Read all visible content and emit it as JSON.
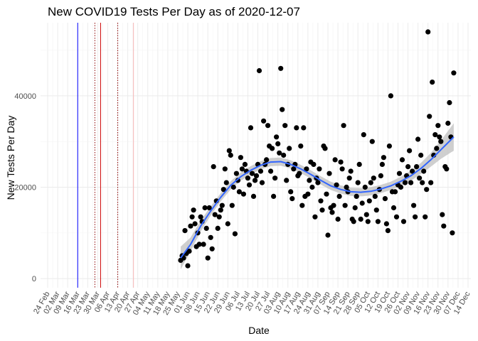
{
  "chart_data": {
    "type": "scatter",
    "title": "New COVID19 Tests Per Day as of 2020-12-07",
    "xlabel": "Date",
    "ylabel": "New Tests Per Day",
    "x_range": [
      "2020-02-19",
      "2020-12-16"
    ],
    "ylim": [
      -2000,
      56000
    ],
    "x_ticks": [
      {
        "date": "2020-02-24",
        "label": "24 Feb"
      },
      {
        "date": "2020-03-02",
        "label": "02 Mar"
      },
      {
        "date": "2020-03-09",
        "label": "09 Mar"
      },
      {
        "date": "2020-03-16",
        "label": "16 Mar"
      },
      {
        "date": "2020-03-23",
        "label": "23 Mar"
      },
      {
        "date": "2020-03-30",
        "label": "30 Mar"
      },
      {
        "date": "2020-04-06",
        "label": "06 Apr"
      },
      {
        "date": "2020-04-13",
        "label": "13 Apr"
      },
      {
        "date": "2020-04-20",
        "label": "20 Apr"
      },
      {
        "date": "2020-04-27",
        "label": "27 Apr"
      },
      {
        "date": "2020-05-04",
        "label": "04 May"
      },
      {
        "date": "2020-05-11",
        "label": "11 May"
      },
      {
        "date": "2020-05-18",
        "label": "18 May"
      },
      {
        "date": "2020-05-25",
        "label": "25 May"
      },
      {
        "date": "2020-06-01",
        "label": "01 Jun"
      },
      {
        "date": "2020-06-08",
        "label": "08 Jun"
      },
      {
        "date": "2020-06-15",
        "label": "15 Jun"
      },
      {
        "date": "2020-06-22",
        "label": "22 Jun"
      },
      {
        "date": "2020-06-29",
        "label": "29 Jun"
      },
      {
        "date": "2020-07-06",
        "label": "06 Jul"
      },
      {
        "date": "2020-07-13",
        "label": "13 Jul"
      },
      {
        "date": "2020-07-20",
        "label": "20 Jul"
      },
      {
        "date": "2020-07-27",
        "label": "27 Jul"
      },
      {
        "date": "2020-08-03",
        "label": "03 Aug"
      },
      {
        "date": "2020-08-10",
        "label": "10 Aug"
      },
      {
        "date": "2020-08-17",
        "label": "17 Aug"
      },
      {
        "date": "2020-08-24",
        "label": "24 Aug"
      },
      {
        "date": "2020-08-31",
        "label": "31 Aug"
      },
      {
        "date": "2020-09-07",
        "label": "07 Sep"
      },
      {
        "date": "2020-09-14",
        "label": "14 Sep"
      },
      {
        "date": "2020-09-21",
        "label": "21 Sep"
      },
      {
        "date": "2020-09-28",
        "label": "28 Sep"
      },
      {
        "date": "2020-10-05",
        "label": "05 Oct"
      },
      {
        "date": "2020-10-12",
        "label": "12 Oct"
      },
      {
        "date": "2020-10-19",
        "label": "19 Oct"
      },
      {
        "date": "2020-10-26",
        "label": "26 Oct"
      },
      {
        "date": "2020-11-02",
        "label": "02 Nov"
      },
      {
        "date": "2020-11-09",
        "label": "09 Nov"
      },
      {
        "date": "2020-11-16",
        "label": "16 Nov"
      },
      {
        "date": "2020-11-23",
        "label": "23 Nov"
      },
      {
        "date": "2020-11-30",
        "label": "30 Nov"
      },
      {
        "date": "2020-12-07",
        "label": "07 Dec"
      },
      {
        "date": "2020-12-14",
        "label": "14 Dec"
      }
    ],
    "y_ticks": [
      0,
      20000,
      40000
    ],
    "grid": true,
    "legend": "none",
    "reference_lines": [
      {
        "date": "2020-03-16",
        "color": "#0000ff",
        "style": "solid"
      },
      {
        "date": "2020-03-28",
        "color": "#8b0000",
        "style": "dotted"
      },
      {
        "date": "2020-04-01",
        "color": "#cc0000",
        "style": "solid"
      },
      {
        "date": "2020-04-13",
        "color": "#8b0000",
        "style": "dotted"
      },
      {
        "date": "2020-04-24",
        "color": "#f4b6b6",
        "style": "solid"
      }
    ],
    "point_color": "#000000",
    "smooth_color": "#3366ff",
    "band_color": "#bfbfbf",
    "points": [
      {
        "x": "2020-05-27",
        "y": 4000
      },
      {
        "x": "2020-05-28",
        "y": 5000
      },
      {
        "x": "2020-05-29",
        "y": 4500
      },
      {
        "x": "2020-05-30",
        "y": 10500
      },
      {
        "x": "2020-05-31",
        "y": 5500
      },
      {
        "x": "2020-06-01",
        "y": 2800
      },
      {
        "x": "2020-06-02",
        "y": 6000
      },
      {
        "x": "2020-06-03",
        "y": 11500
      },
      {
        "x": "2020-06-04",
        "y": 13500
      },
      {
        "x": "2020-06-05",
        "y": 15000
      },
      {
        "x": "2020-06-06",
        "y": 12000
      },
      {
        "x": "2020-06-07",
        "y": 7000
      },
      {
        "x": "2020-06-08",
        "y": 10000
      },
      {
        "x": "2020-06-09",
        "y": 7500
      },
      {
        "x": "2020-06-10",
        "y": 13500
      },
      {
        "x": "2020-06-11",
        "y": 12500
      },
      {
        "x": "2020-06-12",
        "y": 7500
      },
      {
        "x": "2020-06-13",
        "y": 15500
      },
      {
        "x": "2020-06-14",
        "y": 11000
      },
      {
        "x": "2020-06-15",
        "y": 4500
      },
      {
        "x": "2020-06-16",
        "y": 15500
      },
      {
        "x": "2020-06-17",
        "y": 9000
      },
      {
        "x": "2020-06-18",
        "y": 6500
      },
      {
        "x": "2020-06-19",
        "y": 24500
      },
      {
        "x": "2020-06-20",
        "y": 14000
      },
      {
        "x": "2020-06-21",
        "y": 17000
      },
      {
        "x": "2020-06-22",
        "y": 11000
      },
      {
        "x": "2020-06-23",
        "y": 13500
      },
      {
        "x": "2020-06-24",
        "y": 15000
      },
      {
        "x": "2020-06-25",
        "y": 16000
      },
      {
        "x": "2020-06-26",
        "y": 19500
      },
      {
        "x": "2020-06-27",
        "y": 24000
      },
      {
        "x": "2020-06-28",
        "y": 21000
      },
      {
        "x": "2020-06-29",
        "y": 12000
      },
      {
        "x": "2020-06-30",
        "y": 28000
      },
      {
        "x": "2020-07-01",
        "y": 27000
      },
      {
        "x": "2020-07-02",
        "y": 16000
      },
      {
        "x": "2020-07-03",
        "y": 20000
      },
      {
        "x": "2020-07-04",
        "y": 9800
      },
      {
        "x": "2020-07-05",
        "y": 23000
      },
      {
        "x": "2020-07-06",
        "y": 21500
      },
      {
        "x": "2020-07-07",
        "y": 19000
      },
      {
        "x": "2020-07-08",
        "y": 26500
      },
      {
        "x": "2020-07-09",
        "y": 24000
      },
      {
        "x": "2020-07-10",
        "y": 18500
      },
      {
        "x": "2020-07-11",
        "y": 25000
      },
      {
        "x": "2020-07-12",
        "y": 23500
      },
      {
        "x": "2020-07-13",
        "y": 22000
      },
      {
        "x": "2020-07-14",
        "y": 20500
      },
      {
        "x": "2020-07-15",
        "y": 33000
      },
      {
        "x": "2020-07-16",
        "y": 23000
      },
      {
        "x": "2020-07-17",
        "y": 18000
      },
      {
        "x": "2020-07-18",
        "y": 21500
      },
      {
        "x": "2020-07-19",
        "y": 22500
      },
      {
        "x": "2020-07-20",
        "y": 25000
      },
      {
        "x": "2020-07-21",
        "y": 45500
      },
      {
        "x": "2020-07-22",
        "y": 23500
      },
      {
        "x": "2020-07-23",
        "y": 21000
      },
      {
        "x": "2020-07-24",
        "y": 34500
      },
      {
        "x": "2020-07-25",
        "y": 25000
      },
      {
        "x": "2020-07-26",
        "y": 26000
      },
      {
        "x": "2020-07-27",
        "y": 33500
      },
      {
        "x": "2020-07-28",
        "y": 29000
      },
      {
        "x": "2020-07-29",
        "y": 23500
      },
      {
        "x": "2020-07-30",
        "y": 28500
      },
      {
        "x": "2020-07-31",
        "y": 18000
      },
      {
        "x": "2020-08-01",
        "y": 22000
      },
      {
        "x": "2020-08-02",
        "y": 31000
      },
      {
        "x": "2020-08-03",
        "y": 29500
      },
      {
        "x": "2020-08-04",
        "y": 27500
      },
      {
        "x": "2020-08-05",
        "y": 46000
      },
      {
        "x": "2020-08-06",
        "y": 37000
      },
      {
        "x": "2020-08-07",
        "y": 27000
      },
      {
        "x": "2020-08-08",
        "y": 33500
      },
      {
        "x": "2020-08-09",
        "y": 21500
      },
      {
        "x": "2020-08-10",
        "y": 25000
      },
      {
        "x": "2020-08-11",
        "y": 28500
      },
      {
        "x": "2020-08-12",
        "y": 19000
      },
      {
        "x": "2020-08-13",
        "y": 17500
      },
      {
        "x": "2020-08-14",
        "y": 24000
      },
      {
        "x": "2020-08-15",
        "y": 25000
      },
      {
        "x": "2020-08-16",
        "y": 33000
      },
      {
        "x": "2020-08-17",
        "y": 22500
      },
      {
        "x": "2020-08-18",
        "y": 23000
      },
      {
        "x": "2020-08-19",
        "y": 29000
      },
      {
        "x": "2020-08-20",
        "y": 16000
      },
      {
        "x": "2020-08-21",
        "y": 33000
      },
      {
        "x": "2020-08-22",
        "y": 18000
      },
      {
        "x": "2020-08-23",
        "y": 24000
      },
      {
        "x": "2020-08-24",
        "y": 18500
      },
      {
        "x": "2020-08-25",
        "y": 21500
      },
      {
        "x": "2020-08-26",
        "y": 25500
      },
      {
        "x": "2020-08-27",
        "y": 20000
      },
      {
        "x": "2020-08-28",
        "y": 25000
      },
      {
        "x": "2020-08-29",
        "y": 13500
      },
      {
        "x": "2020-08-30",
        "y": 22000
      },
      {
        "x": "2020-08-31",
        "y": 21000
      },
      {
        "x": "2020-09-01",
        "y": 24000
      },
      {
        "x": "2020-09-02",
        "y": 17000
      },
      {
        "x": "2020-09-03",
        "y": 15000
      },
      {
        "x": "2020-09-04",
        "y": 29000
      },
      {
        "x": "2020-09-05",
        "y": 28500
      },
      {
        "x": "2020-09-06",
        "y": 18500
      },
      {
        "x": "2020-09-07",
        "y": 9500
      },
      {
        "x": "2020-09-08",
        "y": 23000
      },
      {
        "x": "2020-09-09",
        "y": 15500
      },
      {
        "x": "2020-09-10",
        "y": 14500
      },
      {
        "x": "2020-09-11",
        "y": 16000
      },
      {
        "x": "2020-09-12",
        "y": 26000
      },
      {
        "x": "2020-09-13",
        "y": 20500
      },
      {
        "x": "2020-09-14",
        "y": 13000
      },
      {
        "x": "2020-09-15",
        "y": 18000
      },
      {
        "x": "2020-09-16",
        "y": 25500
      },
      {
        "x": "2020-09-17",
        "y": 24000
      },
      {
        "x": "2020-09-18",
        "y": 33500
      },
      {
        "x": "2020-09-19",
        "y": 16000
      },
      {
        "x": "2020-09-20",
        "y": 20000
      },
      {
        "x": "2020-09-21",
        "y": 19000
      },
      {
        "x": "2020-09-22",
        "y": 22000
      },
      {
        "x": "2020-09-23",
        "y": 23500
      },
      {
        "x": "2020-09-24",
        "y": 13000
      },
      {
        "x": "2020-09-25",
        "y": 12500
      },
      {
        "x": "2020-09-26",
        "y": 15500
      },
      {
        "x": "2020-09-27",
        "y": 18000
      },
      {
        "x": "2020-09-28",
        "y": 21000
      },
      {
        "x": "2020-09-29",
        "y": 25000
      },
      {
        "x": "2020-09-30",
        "y": 13000
      },
      {
        "x": "2020-10-01",
        "y": 16500
      },
      {
        "x": "2020-10-02",
        "y": 31500
      },
      {
        "x": "2020-10-03",
        "y": 20000
      },
      {
        "x": "2020-10-04",
        "y": 14000
      },
      {
        "x": "2020-10-05",
        "y": 12500
      },
      {
        "x": "2020-10-06",
        "y": 17000
      },
      {
        "x": "2020-10-07",
        "y": 21000
      },
      {
        "x": "2020-10-08",
        "y": 30000
      },
      {
        "x": "2020-10-09",
        "y": 22000
      },
      {
        "x": "2020-10-10",
        "y": 18000
      },
      {
        "x": "2020-10-11",
        "y": 15000
      },
      {
        "x": "2020-10-12",
        "y": 12500
      },
      {
        "x": "2020-10-13",
        "y": 19500
      },
      {
        "x": "2020-10-14",
        "y": 22500
      },
      {
        "x": "2020-10-15",
        "y": 25000
      },
      {
        "x": "2020-10-16",
        "y": 26500
      },
      {
        "x": "2020-10-17",
        "y": 17500
      },
      {
        "x": "2020-10-18",
        "y": 12000
      },
      {
        "x": "2020-10-19",
        "y": 10500
      },
      {
        "x": "2020-10-20",
        "y": 29000
      },
      {
        "x": "2020-10-21",
        "y": 40000
      },
      {
        "x": "2020-10-22",
        "y": 19000
      },
      {
        "x": "2020-10-23",
        "y": 15500
      },
      {
        "x": "2020-10-24",
        "y": 19000
      },
      {
        "x": "2020-10-25",
        "y": 13500
      },
      {
        "x": "2020-10-26",
        "y": 20500
      },
      {
        "x": "2020-10-27",
        "y": 23000
      },
      {
        "x": "2020-10-28",
        "y": 20000
      },
      {
        "x": "2020-10-29",
        "y": 26000
      },
      {
        "x": "2020-10-30",
        "y": 12500
      },
      {
        "x": "2020-10-31",
        "y": 21000
      },
      {
        "x": "2020-11-01",
        "y": 22500
      },
      {
        "x": "2020-11-02",
        "y": 24500
      },
      {
        "x": "2020-11-03",
        "y": 28000
      },
      {
        "x": "2020-11-04",
        "y": 21000
      },
      {
        "x": "2020-11-05",
        "y": 23500
      },
      {
        "x": "2020-11-06",
        "y": 16000
      },
      {
        "x": "2020-11-07",
        "y": 13500
      },
      {
        "x": "2020-11-08",
        "y": 24500
      },
      {
        "x": "2020-11-09",
        "y": 30500
      },
      {
        "x": "2020-11-10",
        "y": 22000
      },
      {
        "x": "2020-11-11",
        "y": 27000
      },
      {
        "x": "2020-11-12",
        "y": 21000
      },
      {
        "x": "2020-11-13",
        "y": 23500
      },
      {
        "x": "2020-11-14",
        "y": 13500
      },
      {
        "x": "2020-11-15",
        "y": 19500
      },
      {
        "x": "2020-11-16",
        "y": 54000
      },
      {
        "x": "2020-11-17",
        "y": 35500
      },
      {
        "x": "2020-11-18",
        "y": 21000
      },
      {
        "x": "2020-11-19",
        "y": 43000
      },
      {
        "x": "2020-11-20",
        "y": 27000
      },
      {
        "x": "2020-11-21",
        "y": 31500
      },
      {
        "x": "2020-11-22",
        "y": 28500
      },
      {
        "x": "2020-11-23",
        "y": 33500
      },
      {
        "x": "2020-11-24",
        "y": 31000
      },
      {
        "x": "2020-11-25",
        "y": 30000
      },
      {
        "x": "2020-11-26",
        "y": 14000
      },
      {
        "x": "2020-11-27",
        "y": 11500
      },
      {
        "x": "2020-11-28",
        "y": 24500
      },
      {
        "x": "2020-11-29",
        "y": 24000
      },
      {
        "x": "2020-11-30",
        "y": 34000
      },
      {
        "x": "2020-12-01",
        "y": 38500
      },
      {
        "x": "2020-12-02",
        "y": 31000
      },
      {
        "x": "2020-12-03",
        "y": 10000
      },
      {
        "x": "2020-12-04",
        "y": 45000
      }
    ],
    "smooth": [
      {
        "x": "2020-05-27",
        "y": 4500,
        "lo": 2000,
        "hi": 7000
      },
      {
        "x": "2020-06-03",
        "y": 7500,
        "lo": 6000,
        "hi": 9000
      },
      {
        "x": "2020-06-10",
        "y": 11500,
        "lo": 10300,
        "hi": 12700
      },
      {
        "x": "2020-06-17",
        "y": 14800,
        "lo": 13800,
        "hi": 15800
      },
      {
        "x": "2020-06-24",
        "y": 17800,
        "lo": 16900,
        "hi": 18700
      },
      {
        "x": "2020-07-01",
        "y": 20400,
        "lo": 19500,
        "hi": 21300
      },
      {
        "x": "2020-07-08",
        "y": 22300,
        "lo": 21400,
        "hi": 23200
      },
      {
        "x": "2020-07-15",
        "y": 23700,
        "lo": 22800,
        "hi": 24600
      },
      {
        "x": "2020-07-22",
        "y": 24800,
        "lo": 23900,
        "hi": 25700
      },
      {
        "x": "2020-07-29",
        "y": 25500,
        "lo": 24600,
        "hi": 26400
      },
      {
        "x": "2020-08-05",
        "y": 25600,
        "lo": 24700,
        "hi": 26500
      },
      {
        "x": "2020-08-12",
        "y": 25000,
        "lo": 24100,
        "hi": 25900
      },
      {
        "x": "2020-08-19",
        "y": 24000,
        "lo": 23100,
        "hi": 24900
      },
      {
        "x": "2020-08-26",
        "y": 22800,
        "lo": 21900,
        "hi": 23700
      },
      {
        "x": "2020-09-02",
        "y": 21500,
        "lo": 20600,
        "hi": 22400
      },
      {
        "x": "2020-09-09",
        "y": 20300,
        "lo": 19400,
        "hi": 21200
      },
      {
        "x": "2020-09-16",
        "y": 19500,
        "lo": 18600,
        "hi": 20400
      },
      {
        "x": "2020-09-23",
        "y": 19000,
        "lo": 18100,
        "hi": 19900
      },
      {
        "x": "2020-09-30",
        "y": 18900,
        "lo": 18000,
        "hi": 19800
      },
      {
        "x": "2020-10-07",
        "y": 19100,
        "lo": 18200,
        "hi": 20000
      },
      {
        "x": "2020-10-14",
        "y": 19600,
        "lo": 18700,
        "hi": 20500
      },
      {
        "x": "2020-10-21",
        "y": 20300,
        "lo": 19400,
        "hi": 21200
      },
      {
        "x": "2020-10-28",
        "y": 21300,
        "lo": 20300,
        "hi": 22300
      },
      {
        "x": "2020-11-04",
        "y": 22500,
        "lo": 21400,
        "hi": 23600
      },
      {
        "x": "2020-11-11",
        "y": 24100,
        "lo": 22900,
        "hi": 25300
      },
      {
        "x": "2020-11-18",
        "y": 26000,
        "lo": 24500,
        "hi": 27500
      },
      {
        "x": "2020-11-25",
        "y": 28200,
        "lo": 26200,
        "hi": 30200
      },
      {
        "x": "2020-12-04",
        "y": 31000,
        "lo": 28000,
        "hi": 34000
      }
    ]
  }
}
